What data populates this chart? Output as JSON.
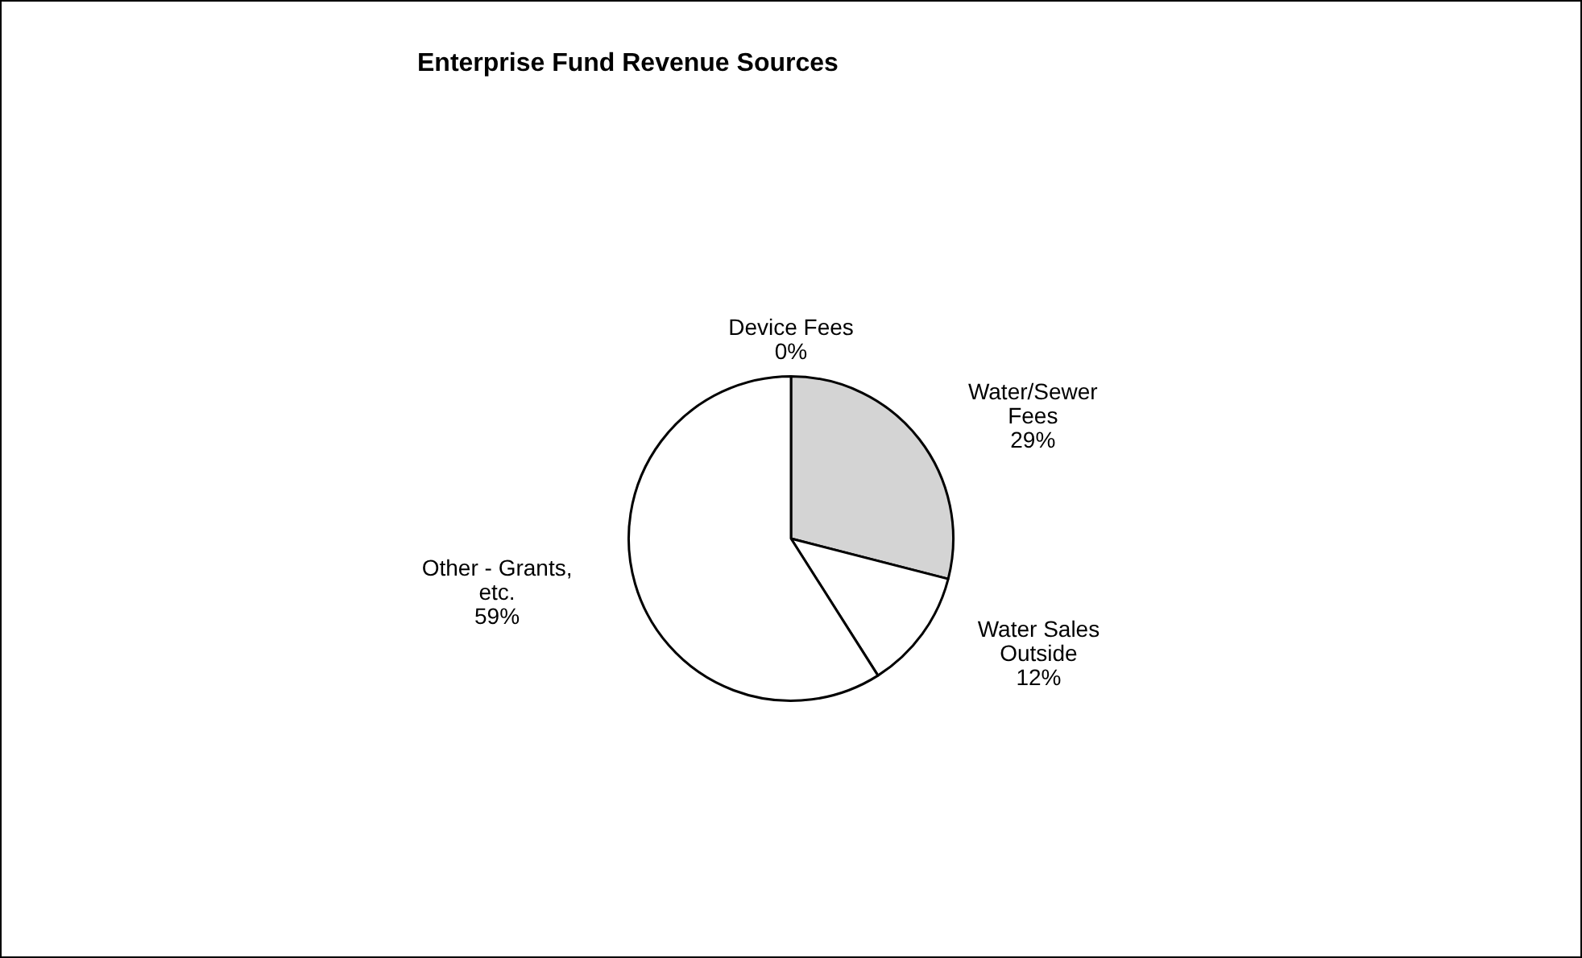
{
  "chart_data": {
    "type": "pie",
    "title": "Enterprise Fund Revenue Sources",
    "categories": [
      "Device Fees",
      "Water/Sewer Fees",
      "Water Sales Outside",
      "Other - Grants, etc."
    ],
    "values": [
      0,
      29,
      12,
      59
    ],
    "colors": [
      "#ffffff",
      "#d4d4d4",
      "#ffffff",
      "#ffffff"
    ],
    "value_labels": [
      "0%",
      "29%",
      "12%",
      "59%"
    ],
    "legend": false
  }
}
